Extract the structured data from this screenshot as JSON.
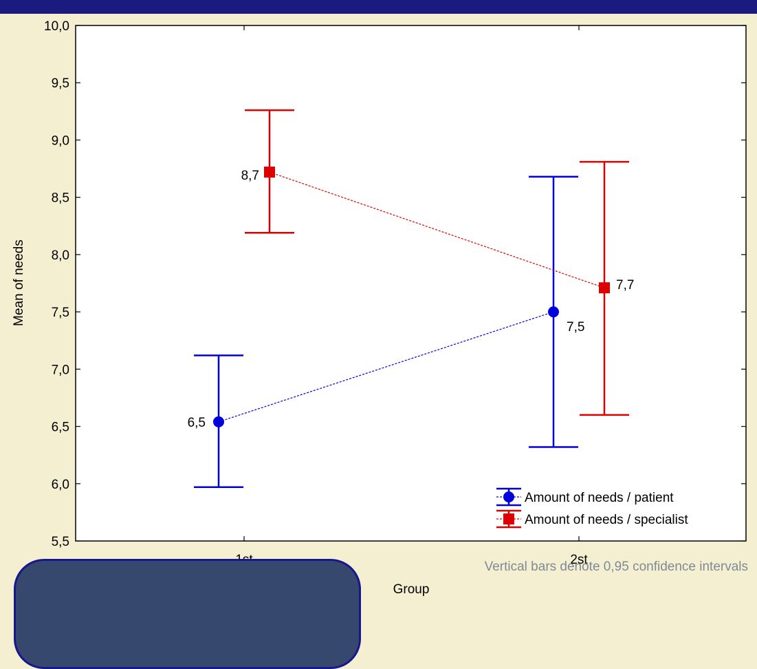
{
  "chart_data": {
    "type": "line",
    "title": "",
    "xlabel": "Group",
    "ylabel": "Mean of needs",
    "categories": [
      "1st",
      "2st"
    ],
    "ylim": [
      5.5,
      10.0
    ],
    "yticks": [
      "5,5",
      "6,0",
      "6,5",
      "7,0",
      "7,5",
      "8,0",
      "8,5",
      "9,0",
      "9,5",
      "10,0"
    ],
    "grid": false,
    "legend_position": "bottom-right",
    "series": [
      {
        "name": "Amount of needs / patient",
        "color": "#0000dd",
        "marker": "circle",
        "values": [
          6.54,
          7.5
        ],
        "ci_lower": [
          5.97,
          6.32
        ],
        "ci_upper": [
          7.12,
          8.68
        ],
        "value_labels": [
          "6,5",
          "7,5"
        ]
      },
      {
        "name": "Amount of needs / specialist",
        "color": "#dd0000",
        "marker": "square",
        "values": [
          8.72,
          7.71
        ],
        "ci_lower": [
          8.19,
          6.6
        ],
        "ci_upper": [
          9.26,
          8.81
        ],
        "value_labels": [
          "8,7",
          "7,7"
        ]
      }
    ],
    "note": "Vertical bars denote 0,95 confidence intervals"
  }
}
